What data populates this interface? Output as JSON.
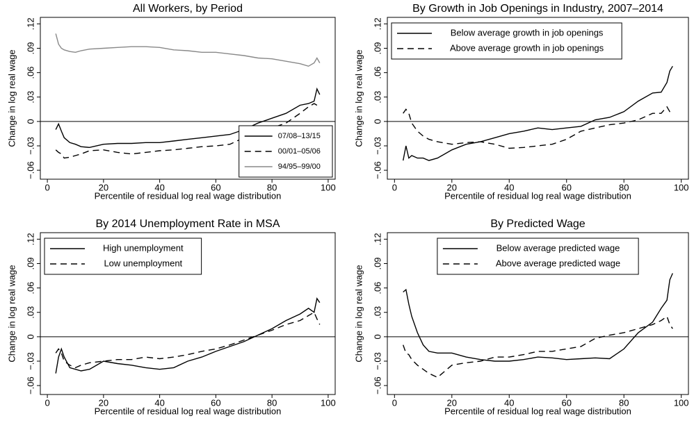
{
  "chart_data": [
    {
      "type": "line",
      "title": "All Workers, by Period",
      "xlabel": "Percentile of residual log real wage distribution",
      "ylabel": "Change in log real wage",
      "x": [
        3,
        4,
        5,
        6,
        8,
        10,
        12,
        15,
        20,
        25,
        30,
        35,
        40,
        45,
        50,
        55,
        60,
        65,
        70,
        75,
        80,
        85,
        90,
        93,
        95,
        96,
        97
      ],
      "series": [
        {
          "name": "07/08–13/15",
          "color": "#000000",
          "dash": "solid",
          "values": [
            -0.01,
            -0.003,
            -0.012,
            -0.02,
            -0.026,
            -0.028,
            -0.031,
            -0.032,
            -0.028,
            -0.027,
            -0.027,
            -0.026,
            -0.026,
            -0.024,
            -0.022,
            -0.02,
            -0.018,
            -0.016,
            -0.01,
            -0.002,
            0.004,
            0.01,
            0.02,
            0.022,
            0.025,
            0.04,
            0.033
          ]
        },
        {
          "name": "00/01–05/06",
          "color": "#000000",
          "dash": "dashed",
          "values": [
            -0.035,
            -0.038,
            -0.04,
            -0.045,
            -0.044,
            -0.042,
            -0.04,
            -0.036,
            -0.035,
            -0.038,
            -0.04,
            -0.038,
            -0.036,
            -0.035,
            -0.033,
            -0.031,
            -0.03,
            -0.028,
            -0.02,
            -0.012,
            -0.008,
            -0.002,
            0.01,
            0.018,
            0.022,
            0.02,
            0.018
          ]
        },
        {
          "name": "94/95–99/00",
          "color": "#888888",
          "dash": "solid",
          "values": [
            0.108,
            0.095,
            0.09,
            0.088,
            0.086,
            0.085,
            0.087,
            0.089,
            0.09,
            0.091,
            0.092,
            0.092,
            0.091,
            0.088,
            0.087,
            0.085,
            0.085,
            0.083,
            0.081,
            0.078,
            0.077,
            0.074,
            0.071,
            0.068,
            0.072,
            0.078,
            0.072
          ]
        }
      ],
      "xlim": [
        -2.5,
        102.5
      ],
      "ylim": [
        -0.071,
        0.128
      ],
      "xticks": [
        0,
        20,
        40,
        60,
        80,
        100
      ],
      "yticks": [
        {
          "value": -0.06,
          "label": "−.06"
        },
        {
          "value": -0.03,
          "label": "−.03"
        },
        0,
        {
          "value": 0.03,
          "label": ".03"
        },
        {
          "value": 0.06,
          "label": ".06"
        },
        {
          "value": 0.09,
          "label": ".09"
        },
        {
          "value": 0.12,
          "label": ".12"
        }
      ],
      "hline": 0,
      "legend": "lower right"
    },
    {
      "type": "line",
      "title": "By Growth in Job Openings in Industry, 2007–2014",
      "xlabel": "Percentile of residual log real wage distribution",
      "ylabel": "Change in log real wage",
      "x": [
        3,
        4,
        5,
        6,
        8,
        10,
        12,
        15,
        20,
        25,
        30,
        35,
        40,
        45,
        50,
        55,
        60,
        65,
        70,
        75,
        80,
        85,
        90,
        93,
        95,
        96,
        97
      ],
      "series": [
        {
          "name": "Below average growth in job openings",
          "color": "#000000",
          "dash": "solid",
          "values": [
            -0.048,
            -0.03,
            -0.045,
            -0.042,
            -0.045,
            -0.045,
            -0.048,
            -0.045,
            -0.035,
            -0.028,
            -0.025,
            -0.02,
            -0.015,
            -0.012,
            -0.008,
            -0.01,
            -0.008,
            -0.006,
            0.002,
            0.005,
            0.012,
            0.025,
            0.035,
            0.036,
            0.048,
            0.062,
            0.068
          ]
        },
        {
          "name": "Above average growth in job openings",
          "color": "#000000",
          "dash": "dashed",
          "values": [
            0.01,
            0.015,
            0.01,
            -0.002,
            -0.012,
            -0.018,
            -0.022,
            -0.025,
            -0.028,
            -0.026,
            -0.025,
            -0.028,
            -0.033,
            -0.032,
            -0.03,
            -0.028,
            -0.022,
            -0.012,
            -0.008,
            -0.004,
            -0.002,
            0.002,
            0.01,
            0.01,
            0.018,
            0.012,
            0.008
          ]
        }
      ],
      "xlim": [
        -2.5,
        102.5
      ],
      "ylim": [
        -0.071,
        0.128
      ],
      "xticks": [
        0,
        20,
        40,
        60,
        80,
        100
      ],
      "yticks": [
        {
          "value": -0.06,
          "label": "−.06"
        },
        {
          "value": -0.03,
          "label": "−.03"
        },
        0,
        {
          "value": 0.03,
          "label": ".03"
        },
        {
          "value": 0.06,
          "label": ".06"
        },
        {
          "value": 0.09,
          "label": ".09"
        },
        {
          "value": 0.12,
          "label": ".12"
        }
      ],
      "hline": 0,
      "legend": "upper left"
    },
    {
      "type": "line",
      "title": "By 2014 Unemployment Rate in MSA",
      "xlabel": "Percentile of residual log real wage distribution",
      "ylabel": "Change in log real wage",
      "x": [
        3,
        4,
        5,
        6,
        8,
        10,
        12,
        15,
        20,
        25,
        30,
        35,
        40,
        45,
        50,
        55,
        60,
        65,
        70,
        75,
        80,
        85,
        90,
        93,
        95,
        96,
        97
      ],
      "series": [
        {
          "name": "High unemployment",
          "color": "#000000",
          "dash": "solid",
          "values": [
            -0.045,
            -0.025,
            -0.015,
            -0.025,
            -0.038,
            -0.04,
            -0.042,
            -0.04,
            -0.03,
            -0.033,
            -0.035,
            -0.038,
            -0.04,
            -0.038,
            -0.03,
            -0.025,
            -0.018,
            -0.012,
            -0.006,
            0.002,
            0.01,
            0.02,
            0.028,
            0.035,
            0.03,
            0.047,
            0.042
          ]
        },
        {
          "name": "Low unemployment",
          "color": "#000000",
          "dash": "dashed",
          "values": [
            -0.02,
            -0.015,
            -0.02,
            -0.03,
            -0.035,
            -0.038,
            -0.035,
            -0.032,
            -0.03,
            -0.028,
            -0.028,
            -0.025,
            -0.027,
            -0.025,
            -0.022,
            -0.018,
            -0.015,
            -0.01,
            -0.004,
            0.002,
            0.008,
            0.015,
            0.02,
            0.026,
            0.03,
            0.022,
            0.015
          ]
        }
      ],
      "xlim": [
        -2.5,
        102.5
      ],
      "ylim": [
        -0.071,
        0.128
      ],
      "xticks": [
        0,
        20,
        40,
        60,
        80,
        100
      ],
      "yticks": [
        {
          "value": -0.06,
          "label": "−.06"
        },
        {
          "value": -0.03,
          "label": "−.03"
        },
        0,
        {
          "value": 0.03,
          "label": ".03"
        },
        {
          "value": 0.06,
          "label": ".06"
        },
        {
          "value": 0.09,
          "label": ".09"
        },
        {
          "value": 0.12,
          "label": ".12"
        }
      ],
      "hline": 0,
      "legend": "upper left"
    },
    {
      "type": "line",
      "title": "By Predicted Wage",
      "xlabel": "Percentile of residual log real wage distribution",
      "ylabel": "Change in log real wage",
      "x": [
        3,
        4,
        5,
        6,
        8,
        10,
        12,
        15,
        20,
        25,
        30,
        35,
        40,
        45,
        50,
        55,
        60,
        65,
        70,
        75,
        80,
        85,
        90,
        93,
        95,
        96,
        97
      ],
      "series": [
        {
          "name": "Below average predicted wage",
          "color": "#000000",
          "dash": "solid",
          "values": [
            0.055,
            0.058,
            0.04,
            0.025,
            0.005,
            -0.01,
            -0.018,
            -0.02,
            -0.02,
            -0.025,
            -0.028,
            -0.03,
            -0.03,
            -0.028,
            -0.025,
            -0.026,
            -0.028,
            -0.027,
            -0.026,
            -0.027,
            -0.015,
            0.005,
            0.018,
            0.035,
            0.045,
            0.07,
            0.078
          ]
        },
        {
          "name": "Above average predicted wage",
          "color": "#000000",
          "dash": "dashed",
          "values": [
            -0.01,
            -0.02,
            -0.022,
            -0.028,
            -0.035,
            -0.04,
            -0.045,
            -0.05,
            -0.035,
            -0.032,
            -0.03,
            -0.025,
            -0.025,
            -0.022,
            -0.018,
            -0.018,
            -0.015,
            -0.012,
            -0.002,
            0.002,
            0.005,
            0.01,
            0.015,
            0.02,
            0.025,
            0.015,
            0.01
          ]
        }
      ],
      "xlim": [
        -2.5,
        102.5
      ],
      "ylim": [
        -0.071,
        0.128
      ],
      "xticks": [
        0,
        20,
        40,
        60,
        80,
        100
      ],
      "yticks": [
        {
          "value": -0.06,
          "label": "−.06"
        },
        {
          "value": -0.03,
          "label": "−.03"
        },
        0,
        {
          "value": 0.03,
          "label": ".03"
        },
        {
          "value": 0.06,
          "label": ".06"
        },
        {
          "value": 0.09,
          "label": ".09"
        },
        {
          "value": 0.12,
          "label": ".12"
        }
      ],
      "hline": 0,
      "legend": "upper center"
    }
  ]
}
